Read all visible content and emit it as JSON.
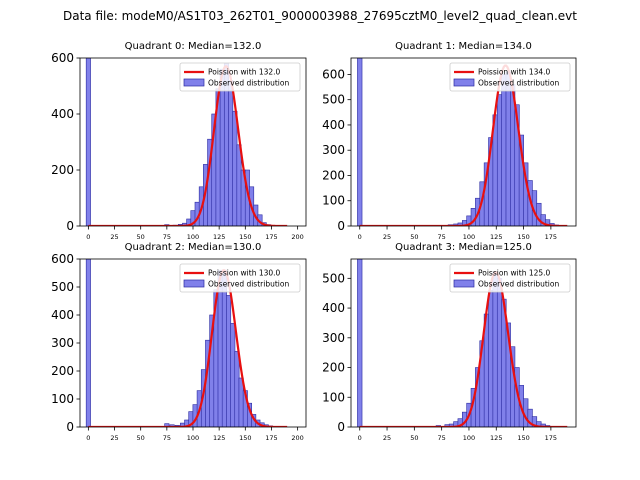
{
  "figure_title": "Data file: modeM0/AS1T03_262T01_9000003988_27695cztM0_level2_quad_clean.evt",
  "colors": {
    "bar_fill": "#8080ea",
    "bar_edge": "#2a2aa0",
    "poisson": "#e81010"
  },
  "chart_data": [
    {
      "type": "bar",
      "title": "Quadrant 0: Median=132.0",
      "median": 132.0,
      "legend": {
        "position": "top-right",
        "line_label": "Poission with 132.0",
        "bar_label": "Observed distribution"
      },
      "xlim": [
        -8,
        208
      ],
      "ylim": [
        0,
        600
      ],
      "xticks": [
        0,
        25,
        50,
        75,
        100,
        125,
        150,
        175,
        200
      ],
      "yticks": [
        0,
        200,
        400,
        600
      ],
      "bin_width": 4.2,
      "bins": [
        [
          0,
          600
        ],
        [
          75,
          5
        ],
        [
          83,
          3
        ],
        [
          88,
          6
        ],
        [
          92,
          10
        ],
        [
          96,
          25
        ],
        [
          100,
          55
        ],
        [
          104,
          85
        ],
        [
          108,
          140
        ],
        [
          112,
          220
        ],
        [
          116,
          310
        ],
        [
          120,
          400
        ],
        [
          124,
          490
        ],
        [
          128,
          560
        ],
        [
          132,
          580
        ],
        [
          136,
          520
        ],
        [
          140,
          410
        ],
        [
          144,
          290
        ],
        [
          148,
          200
        ],
        [
          152,
          200
        ],
        [
          156,
          140
        ],
        [
          160,
          75
        ],
        [
          164,
          40
        ],
        [
          168,
          12
        ],
        [
          172,
          5
        ]
      ],
      "poisson": {
        "mean": 132.0,
        "scale": 570,
        "x_start": 0,
        "x_end": 190
      }
    },
    {
      "type": "bar",
      "title": "Quadrant 1: Median=134.0",
      "median": 134.0,
      "legend": {
        "position": "top-right",
        "line_label": "Poission with 134.0",
        "bar_label": "Observed distribution"
      },
      "xlim": [
        -8,
        198
      ],
      "ylim": [
        0,
        665
      ],
      "xticks": [
        0,
        25,
        50,
        75,
        100,
        125,
        150,
        175
      ],
      "yticks": [
        0,
        100,
        200,
        300,
        400,
        500,
        600
      ],
      "bin_width": 4.2,
      "bins": [
        [
          0,
          665
        ],
        [
          83,
          5
        ],
        [
          88,
          8
        ],
        [
          92,
          12
        ],
        [
          96,
          22
        ],
        [
          100,
          40
        ],
        [
          104,
          70
        ],
        [
          108,
          110
        ],
        [
          112,
          175
        ],
        [
          116,
          250
        ],
        [
          120,
          350
        ],
        [
          124,
          440
        ],
        [
          128,
          520
        ],
        [
          132,
          600
        ],
        [
          136,
          610
        ],
        [
          140,
          560
        ],
        [
          144,
          480
        ],
        [
          148,
          360
        ],
        [
          152,
          250
        ],
        [
          156,
          180
        ],
        [
          160,
          140
        ],
        [
          164,
          90
        ],
        [
          168,
          45
        ],
        [
          172,
          25
        ],
        [
          176,
          10
        ],
        [
          180,
          4
        ]
      ],
      "poisson": {
        "mean": 134.0,
        "scale": 635,
        "x_start": 0,
        "x_end": 190
      }
    },
    {
      "type": "bar",
      "title": "Quadrant 2: Median=130.0",
      "median": 130.0,
      "legend": {
        "position": "top-right",
        "line_label": "Poission with 130.0",
        "bar_label": "Observed distribution"
      },
      "xlim": [
        -8,
        208
      ],
      "ylim": [
        0,
        600
      ],
      "xticks": [
        0,
        25,
        50,
        75,
        100,
        125,
        150,
        175,
        200
      ],
      "yticks": [
        0,
        100,
        200,
        300,
        400,
        500,
        600
      ],
      "bin_width": 4.2,
      "bins": [
        [
          0,
          600
        ],
        [
          75,
          12
        ],
        [
          80,
          8
        ],
        [
          85,
          6
        ],
        [
          90,
          14
        ],
        [
          94,
          25
        ],
        [
          98,
          55
        ],
        [
          102,
          80
        ],
        [
          106,
          130
        ],
        [
          110,
          205
        ],
        [
          114,
          310
        ],
        [
          118,
          400
        ],
        [
          122,
          490
        ],
        [
          126,
          560
        ],
        [
          130,
          560
        ],
        [
          134,
          470
        ],
        [
          138,
          370
        ],
        [
          142,
          270
        ],
        [
          146,
          175
        ],
        [
          150,
          130
        ],
        [
          154,
          85
        ],
        [
          158,
          45
        ],
        [
          162,
          25
        ],
        [
          166,
          15
        ],
        [
          170,
          8
        ],
        [
          174,
          4
        ]
      ],
      "poisson": {
        "mean": 130.0,
        "scale": 560,
        "x_start": 0,
        "x_end": 190
      }
    },
    {
      "type": "bar",
      "title": "Quadrant 3: Median=125.0",
      "median": 125.0,
      "legend": {
        "position": "top-right",
        "line_label": "Poission with 125.0",
        "bar_label": "Observed distribution"
      },
      "xlim": [
        -8,
        198
      ],
      "ylim": [
        0,
        565
      ],
      "xticks": [
        0,
        25,
        50,
        75,
        100,
        125,
        150,
        175
      ],
      "yticks": [
        0,
        100,
        200,
        300,
        400,
        500
      ],
      "bin_width": 4.2,
      "bins": [
        [
          0,
          565
        ],
        [
          72,
          5
        ],
        [
          80,
          8
        ],
        [
          84,
          10
        ],
        [
          88,
          18
        ],
        [
          92,
          28
        ],
        [
          96,
          50
        ],
        [
          100,
          80
        ],
        [
          104,
          130
        ],
        [
          108,
          200
        ],
        [
          112,
          290
        ],
        [
          116,
          380
        ],
        [
          120,
          460
        ],
        [
          124,
          520
        ],
        [
          128,
          500
        ],
        [
          132,
          430
        ],
        [
          136,
          350
        ],
        [
          140,
          270
        ],
        [
          144,
          200
        ],
        [
          148,
          140
        ],
        [
          152,
          95
        ],
        [
          156,
          60
        ],
        [
          160,
          35
        ],
        [
          164,
          18
        ],
        [
          168,
          10
        ],
        [
          172,
          5
        ]
      ],
      "poisson": {
        "mean": 125.0,
        "scale": 520,
        "x_start": 0,
        "x_end": 190
      }
    }
  ]
}
